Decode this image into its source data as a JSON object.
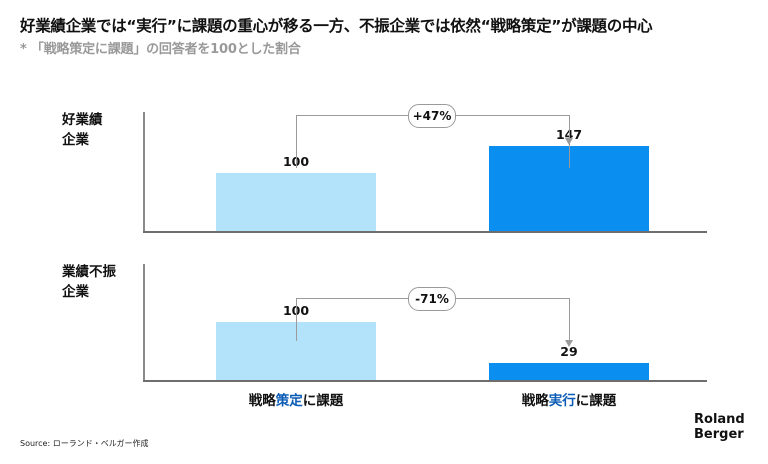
{
  "title": "好業績企業では“実行”に課題の重心が移る一方、不振企業では依然“戦略策定”が課題の中心",
  "subtitle": "* 「戦略策定に課題」の回答者を100とした割合",
  "source": "Source: ローランド・ベルガー作成",
  "logo": {
    "line1": "Roland",
    "line2": "Berger"
  },
  "colors": {
    "light_bar": "#b3e3fb",
    "dark_bar": "#0a8ff0",
    "highlight_text": "#0a5bb5"
  },
  "chart_data": {
    "type": "bar",
    "categories": [
      {
        "prefix": "戦略",
        "highlight": "策定",
        "suffix": "に課題"
      },
      {
        "prefix": "戦略",
        "highlight": "実行",
        "suffix": "に課題"
      }
    ],
    "ylim": [
      0,
      150
    ],
    "groups": [
      {
        "label_line1": "好業績",
        "label_line2": "企業",
        "values": [
          100,
          147
        ],
        "value_labels": [
          "100",
          "147"
        ],
        "change": "+47%"
      },
      {
        "label_line1": "業績不振",
        "label_line2": "企業",
        "values": [
          100,
          29
        ],
        "value_labels": [
          "100",
          "29"
        ],
        "change": "-71%"
      }
    ]
  }
}
